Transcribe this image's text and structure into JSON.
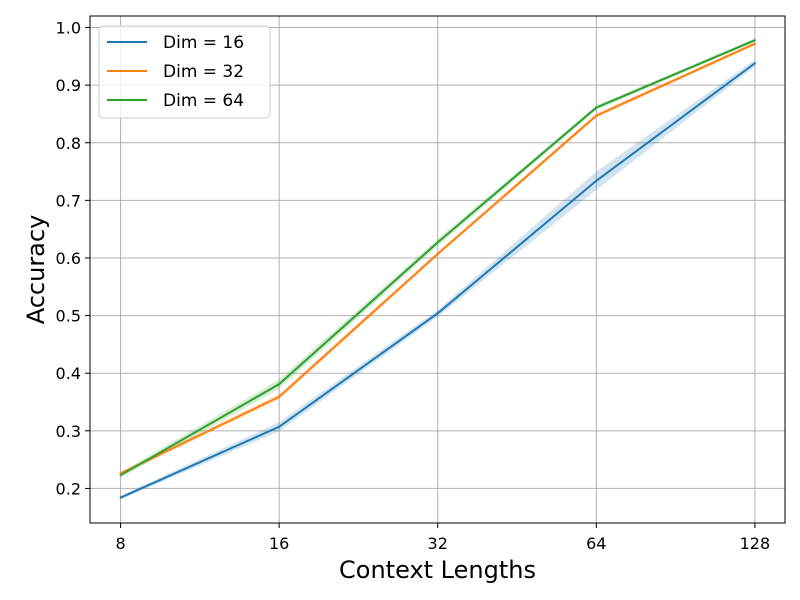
{
  "chart_data": {
    "type": "line",
    "title": "",
    "xlabel": "Context Lengths",
    "ylabel": "Accuracy",
    "x_scale": "log2",
    "categories": [
      "8",
      "16",
      "32",
      "64",
      "128"
    ],
    "x": [
      8,
      16,
      32,
      64,
      128
    ],
    "xlim": [
      7,
      146
    ],
    "ylim": [
      0.14,
      1.02
    ],
    "yticks": [
      0.2,
      0.3,
      0.4,
      0.5,
      0.6,
      0.7,
      0.8,
      0.9,
      1.0
    ],
    "ytick_labels": [
      "0.2",
      "0.3",
      "0.4",
      "0.5",
      "0.6",
      "0.7",
      "0.8",
      "0.9",
      "1.0"
    ],
    "grid": true,
    "legend_position": "top-left",
    "series": [
      {
        "name": "Dim = 16",
        "color": "#1f77b4",
        "values": [
          0.184,
          0.307,
          0.504,
          0.734,
          0.938
        ],
        "band": [
          [
            0.181,
            0.187
          ],
          [
            0.299,
            0.315
          ],
          [
            0.498,
            0.51
          ],
          [
            0.718,
            0.75
          ],
          [
            0.932,
            0.944
          ]
        ]
      },
      {
        "name": "Dim = 32",
        "color": "#ff7f0e",
        "values": [
          0.226,
          0.359,
          0.607,
          0.847,
          0.972
        ],
        "band": [
          [
            0.223,
            0.229
          ],
          [
            0.354,
            0.364
          ],
          [
            0.603,
            0.611
          ],
          [
            0.843,
            0.851
          ],
          [
            0.969,
            0.975
          ]
        ]
      },
      {
        "name": "Dim = 64",
        "color": "#2ca02c",
        "values": [
          0.223,
          0.381,
          0.627,
          0.861,
          0.978
        ],
        "band": [
          [
            0.218,
            0.228
          ],
          [
            0.373,
            0.389
          ],
          [
            0.621,
            0.633
          ],
          [
            0.857,
            0.865
          ],
          [
            0.975,
            0.981
          ]
        ]
      }
    ]
  }
}
